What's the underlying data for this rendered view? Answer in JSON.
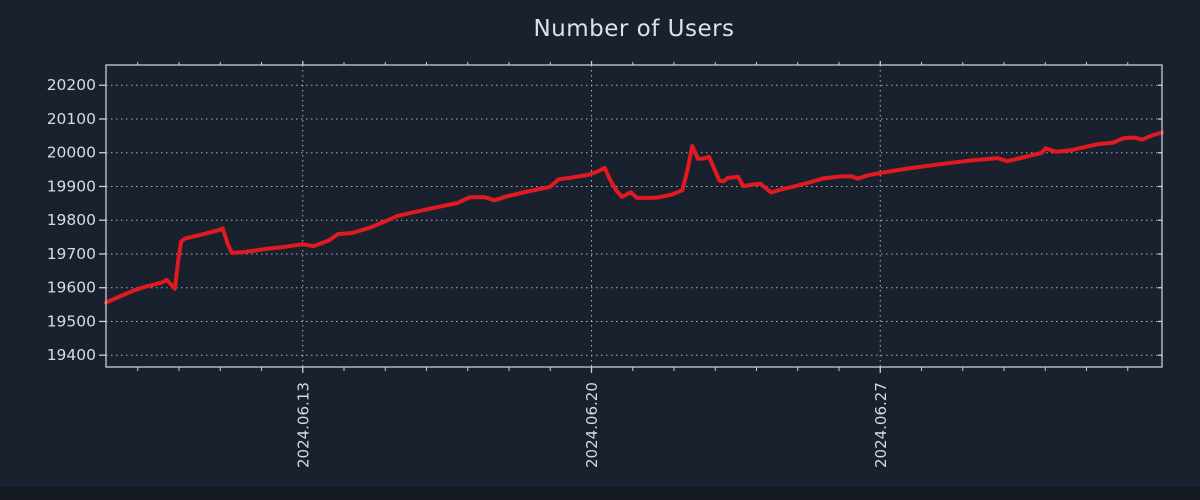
{
  "colors": {
    "background": "#1a212e",
    "bottom_bar": "#131821",
    "plot_border": "#c8cdd6",
    "grid": "#a8b1bd",
    "tick_label": "#d6dbe3",
    "title": "#dde2ea",
    "series": "#e01a20"
  },
  "chart_data": {
    "type": "line",
    "title": "Number of Users",
    "xlabel": "",
    "ylabel": "",
    "x_unit": "days since 2024-06-08 00:00",
    "xlim": [
      0.23,
      25.83
    ],
    "ylim": [
      19365,
      20260
    ],
    "y_ticks": [
      19400,
      19500,
      19600,
      19700,
      19800,
      19900,
      20000,
      20100,
      20200
    ],
    "x_major_ticks": [
      {
        "day": 5,
        "label": "2024.06.13"
      },
      {
        "day": 12,
        "label": "2024.06.20"
      },
      {
        "day": 19,
        "label": "2024.06.27"
      }
    ],
    "x_minor_tick_interval_days": 1,
    "grid": "dotted",
    "legend": "none",
    "series": [
      {
        "name": "Number of Users",
        "color": "#e01a20",
        "points": [
          [
            0.23,
            19556
          ],
          [
            0.45,
            19568
          ],
          [
            0.62,
            19577
          ],
          [
            0.85,
            19589
          ],
          [
            1.1,
            19600
          ],
          [
            1.35,
            19608
          ],
          [
            1.6,
            19616
          ],
          [
            1.7,
            19623
          ],
          [
            1.8,
            19610
          ],
          [
            1.9,
            19597
          ],
          [
            1.98,
            19680
          ],
          [
            2.05,
            19737
          ],
          [
            2.15,
            19746
          ],
          [
            2.4,
            19753
          ],
          [
            2.7,
            19762
          ],
          [
            3.0,
            19772
          ],
          [
            3.06,
            19776
          ],
          [
            3.18,
            19730
          ],
          [
            3.28,
            19703
          ],
          [
            3.52,
            19705
          ],
          [
            3.78,
            19709
          ],
          [
            4.15,
            19716
          ],
          [
            4.5,
            19720
          ],
          [
            5.0,
            19729
          ],
          [
            5.25,
            19723
          ],
          [
            5.65,
            19741
          ],
          [
            5.85,
            19759
          ],
          [
            6.2,
            19762
          ],
          [
            6.65,
            19779
          ],
          [
            6.95,
            19794
          ],
          [
            7.28,
            19812
          ],
          [
            7.6,
            19821
          ],
          [
            8.15,
            19836
          ],
          [
            8.75,
            19851
          ],
          [
            9.05,
            19868
          ],
          [
            9.42,
            19868
          ],
          [
            9.65,
            19859
          ],
          [
            9.95,
            19871
          ],
          [
            10.45,
            19885
          ],
          [
            11.0,
            19899
          ],
          [
            11.2,
            19921
          ],
          [
            11.5,
            19926
          ],
          [
            11.9,
            19934
          ],
          [
            12.1,
            19942
          ],
          [
            12.32,
            19955
          ],
          [
            12.45,
            19920
          ],
          [
            12.6,
            19888
          ],
          [
            12.74,
            19869
          ],
          [
            12.95,
            19883
          ],
          [
            13.1,
            19866
          ],
          [
            13.4,
            19866
          ],
          [
            13.6,
            19867
          ],
          [
            13.95,
            19876
          ],
          [
            14.2,
            19889
          ],
          [
            14.33,
            19950
          ],
          [
            14.44,
            20020
          ],
          [
            14.58,
            19982
          ],
          [
            14.72,
            19983
          ],
          [
            14.85,
            19988
          ],
          [
            15.0,
            19945
          ],
          [
            15.1,
            19917
          ],
          [
            15.2,
            19915
          ],
          [
            15.3,
            19925
          ],
          [
            15.55,
            19929
          ],
          [
            15.68,
            19901
          ],
          [
            15.92,
            19906
          ],
          [
            16.1,
            19908
          ],
          [
            16.35,
            19882
          ],
          [
            16.65,
            19893
          ],
          [
            16.85,
            19898
          ],
          [
            17.25,
            19911
          ],
          [
            17.62,
            19924
          ],
          [
            18.05,
            19930
          ],
          [
            18.32,
            19930
          ],
          [
            18.45,
            19923
          ],
          [
            18.7,
            19933
          ],
          [
            19.0,
            19940
          ],
          [
            19.65,
            19953
          ],
          [
            20.45,
            19966
          ],
          [
            21.25,
            19978
          ],
          [
            21.85,
            19984
          ],
          [
            22.08,
            19975
          ],
          [
            22.35,
            19983
          ],
          [
            22.9,
            19999
          ],
          [
            23.01,
            20013
          ],
          [
            23.25,
            20003
          ],
          [
            23.6,
            20007
          ],
          [
            24.25,
            20025
          ],
          [
            24.65,
            20030
          ],
          [
            24.9,
            20043
          ],
          [
            25.15,
            20045
          ],
          [
            25.35,
            20039
          ],
          [
            25.6,
            20052
          ],
          [
            25.83,
            20060
          ]
        ]
      }
    ]
  }
}
